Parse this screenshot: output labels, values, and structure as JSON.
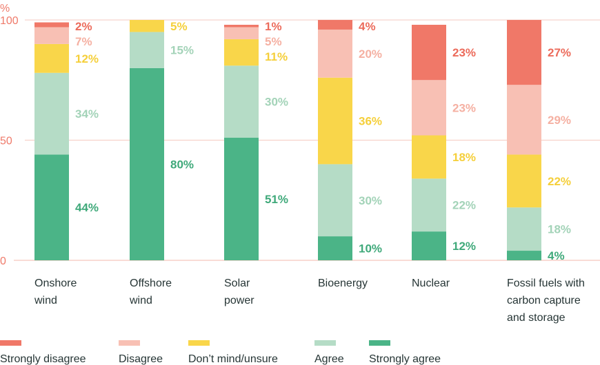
{
  "chart_data": {
    "type": "bar",
    "stacked": true,
    "ylabel": "%",
    "ylim": [
      0,
      100
    ],
    "yticks": [
      "0",
      "50",
      "100"
    ],
    "grid": true,
    "legend_position": "bottom",
    "categories": [
      [
        "Onshore",
        "wind"
      ],
      [
        "Offshore",
        "wind"
      ],
      [
        "Solar",
        "power"
      ],
      [
        "Bioenergy"
      ],
      [
        "Nuclear"
      ],
      [
        "Fossil fuels with",
        "carbon capture",
        "and storage"
      ]
    ],
    "series": [
      {
        "name": "Strongly agree",
        "color": "#4bb487",
        "label_color": "#3fa97a",
        "values": [
          44,
          80,
          51,
          10,
          12,
          4
        ]
      },
      {
        "name": "Agree",
        "color": "#b5dcc6",
        "label_color": "#a3d3b8",
        "values": [
          34,
          15,
          30,
          30,
          22,
          18
        ]
      },
      {
        "name": "Don’t mind/unsure",
        "color": "#f9d64a",
        "label_color": "#f5cf3a",
        "values": [
          12,
          5,
          11,
          36,
          18,
          22
        ]
      },
      {
        "name": "Disagree",
        "color": "#f8c0b4",
        "label_color": "#f5b0a2",
        "values": [
          7,
          0,
          5,
          20,
          23,
          29
        ]
      },
      {
        "name": "Strongly disagree",
        "color": "#f07868",
        "label_color": "#ec6b5b",
        "values": [
          2,
          0,
          1,
          4,
          23,
          27
        ]
      }
    ],
    "legend_order": [
      "Strongly disagree",
      "Disagree",
      "Don’t mind/unsure",
      "Agree",
      "Strongly agree"
    ]
  }
}
